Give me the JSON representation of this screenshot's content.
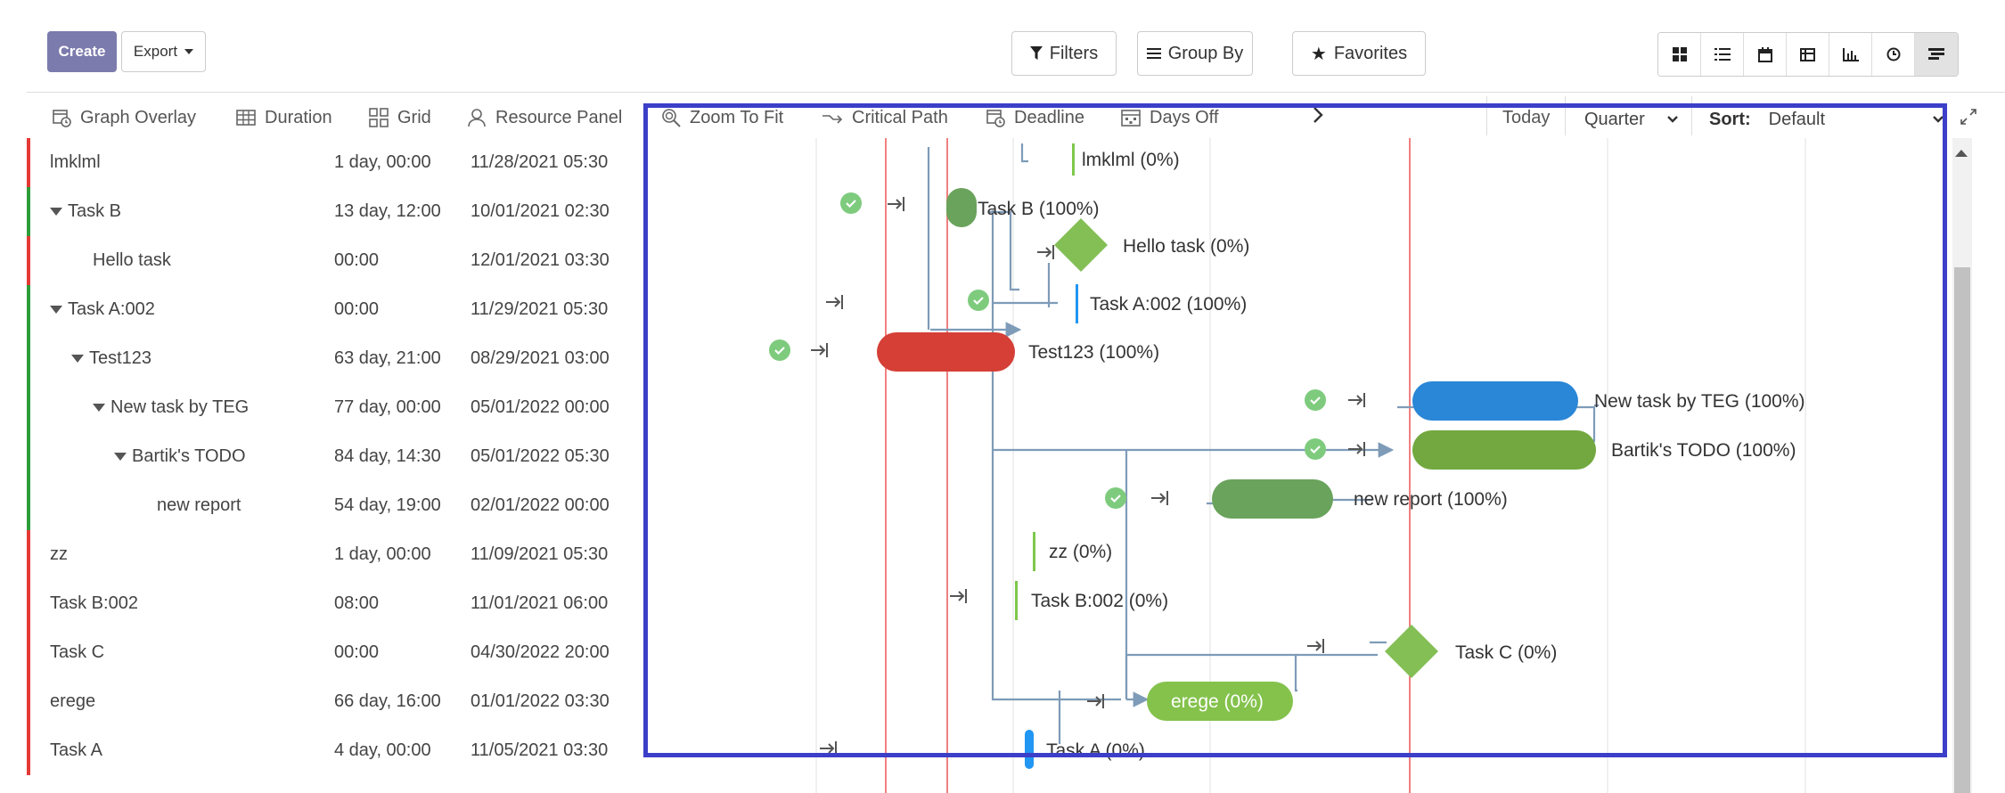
{
  "header": {
    "create_label": "Create",
    "export_label": "Export",
    "filters_label": "Filters",
    "groupby_label": "Group By",
    "favorites_label": "Favorites"
  },
  "views": [
    "kanban-view-icon",
    "list-view-icon",
    "calendar-view-icon",
    "pivot-view-icon",
    "graph-view-icon",
    "activity-view-icon",
    "gantt-view-icon"
  ],
  "toolbar": {
    "graph_overlay": "Graph Overlay",
    "duration": "Duration",
    "grid": "Grid",
    "resource_panel": "Resource Panel",
    "zoom_to_fit": "Zoom To Fit",
    "critical_path": "Critical Path",
    "deadline": "Deadline",
    "days_off": "Days Off",
    "today": "Today",
    "scale": "Quarter",
    "sort_label": "Sort:",
    "sort_value": "Default"
  },
  "colors": {
    "overdue": "#e53935",
    "ontrack": "#2e9e3a",
    "accent": "#3c3fc8",
    "primary_button": "#7c7bad"
  },
  "tasks": [
    {
      "name": "lmklml",
      "duration": "1 day, 00:00",
      "start": "11/28/2021 05:30",
      "indent": 0,
      "caret": false,
      "status": "red"
    },
    {
      "name": "Task B",
      "duration": "13 day, 12:00",
      "start": "10/01/2021 02:30",
      "indent": 0,
      "caret": true,
      "status": "green"
    },
    {
      "name": "Hello task",
      "duration": "00:00",
      "start": "12/01/2021 03:30",
      "indent": 1,
      "caret": false,
      "status": "red"
    },
    {
      "name": "Task A:002",
      "duration": "00:00",
      "start": "11/29/2021 05:30",
      "indent": 0,
      "caret": true,
      "status": "green"
    },
    {
      "name": "Test123",
      "duration": "63 day, 21:00",
      "start": "08/29/2021 03:00",
      "indent": 1,
      "caret": true,
      "status": "green"
    },
    {
      "name": "New task by TEG",
      "duration": "77 day, 00:00",
      "start": "05/01/2022 00:00",
      "indent": 2,
      "caret": true,
      "status": "green"
    },
    {
      "name": "Bartik's TODO",
      "duration": "84 day, 14:30",
      "start": "05/01/2022 05:30",
      "indent": 3,
      "caret": true,
      "status": "green"
    },
    {
      "name": "new report",
      "duration": "54 day, 19:00",
      "start": "02/01/2022 00:00",
      "indent": 4,
      "caret": false,
      "status": "green"
    },
    {
      "name": "zz",
      "duration": "1 day, 00:00",
      "start": "11/09/2021 05:30",
      "indent": 0,
      "caret": false,
      "status": "red"
    },
    {
      "name": "Task B:002",
      "duration": "08:00",
      "start": "11/01/2021 06:00",
      "indent": 0,
      "caret": false,
      "status": "red"
    },
    {
      "name": "Task C",
      "duration": "00:00",
      "start": "04/30/2022 20:00",
      "indent": 0,
      "caret": false,
      "status": "red"
    },
    {
      "name": "erege",
      "duration": "66 day, 16:00",
      "start": "01/01/2022 03:30",
      "indent": 0,
      "caret": false,
      "status": "red"
    },
    {
      "name": "Task A",
      "duration": "4 day, 00:00",
      "start": "11/05/2021 03:30",
      "indent": 0,
      "caret": false,
      "status": "red"
    }
  ],
  "gantt_labels": {
    "lmklml": "lmklml (0%)",
    "taskb": "Task B (100%)",
    "hello": "Hello task (0%)",
    "taska002": "Task A:002 (100%)",
    "test123": "Test123 (100%)",
    "newteg": "New task by TEG (100%)",
    "bartik": "Bartik's TODO (100%)",
    "newreport": "new report (100%)",
    "zz": "zz (0%)",
    "taskb002": "Task B:002 (0%)",
    "taskc": "Task C (0%)",
    "erege": "erege (0%)",
    "taska": "Task A (0%)"
  }
}
